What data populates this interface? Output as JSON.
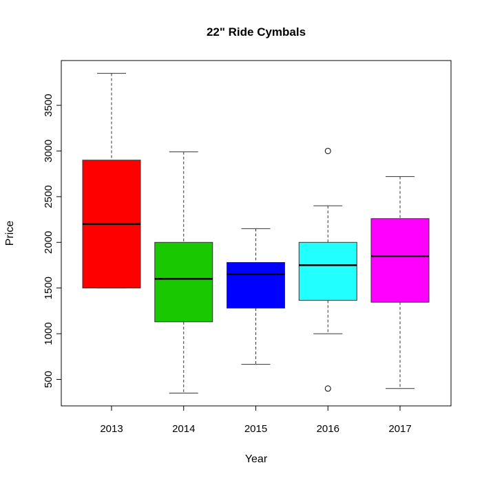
{
  "chart_data": {
    "type": "box",
    "title": "22\" Ride Cymbals",
    "xlabel": "Year",
    "ylabel": "Price",
    "ylim": [
      210,
      3990
    ],
    "yticks": [
      500,
      1000,
      1500,
      2000,
      2500,
      3000,
      3500
    ],
    "grid": false,
    "categories": [
      "2013",
      "2014",
      "2015",
      "2016",
      "2017"
    ],
    "boxes": [
      {
        "category": "2013",
        "whisker_low": 1500,
        "q1": 1500,
        "median": 2200,
        "q3": 2900,
        "whisker_high": 3850,
        "outliers": [],
        "color": "#FF0000"
      },
      {
        "category": "2014",
        "whisker_low": 350,
        "q1": 1130,
        "median": 1600,
        "q3": 2000,
        "whisker_high": 2990,
        "outliers": [],
        "color": "#1AC800"
      },
      {
        "category": "2015",
        "whisker_low": 665,
        "q1": 1280,
        "median": 1650,
        "q3": 1780,
        "whisker_high": 2150,
        "outliers": [],
        "color": "#0000FF"
      },
      {
        "category": "2016",
        "whisker_low": 1000,
        "q1": 1365,
        "median": 1750,
        "q3": 2000,
        "whisker_high": 2400,
        "outliers": [
          400,
          3000
        ],
        "color": "#22FFFF"
      },
      {
        "category": "2017",
        "whisker_low": 400,
        "q1": 1345,
        "median": 1850,
        "q3": 2260,
        "whisker_high": 2720,
        "outliers": [],
        "color": "#FF00FF"
      }
    ]
  }
}
